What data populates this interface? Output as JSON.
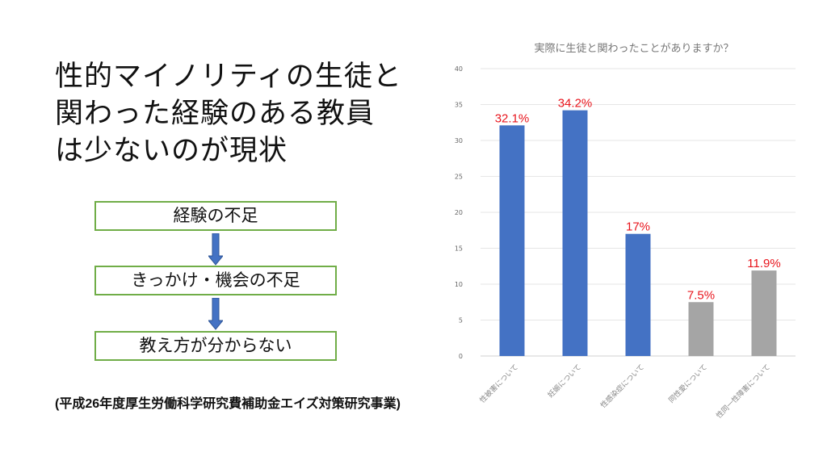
{
  "slide": {
    "title": "性的マイノリティの生徒と関わった経験のある教員は少ないのが現状",
    "flow": [
      "経験の不足",
      "きっかけ・機会の不足",
      "教え方が分からない"
    ],
    "source": "(平成26年度厚生労働科学研究費補助金エイズ対策研究事業)"
  },
  "chart_data": {
    "type": "bar",
    "title": "実際に生徒と関わったことがありますか？",
    "categories": [
      "性被害について",
      "妊娠について",
      "性感染症について",
      "同性愛について",
      "性同一性障害について"
    ],
    "values": [
      32.1,
      34.2,
      17,
      7.5,
      11.9
    ],
    "data_labels": [
      "32.1%",
      "34.2%",
      "17%",
      "7.5%",
      "11.9%"
    ],
    "bar_colors": [
      "#4472c4",
      "#4472c4",
      "#4472c4",
      "#a5a5a5",
      "#a5a5a5"
    ],
    "label_color": "#e8141c",
    "ylim": [
      0,
      40
    ],
    "yticks": [
      0,
      5,
      10,
      15,
      20,
      25,
      30,
      35,
      40
    ],
    "grid": true,
    "xlabel": "",
    "ylabel": ""
  }
}
